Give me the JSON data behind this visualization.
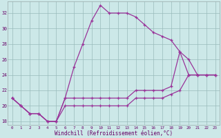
{
  "xlabel": "Windchill (Refroidissement éolien,°C)",
  "bg_color": "#cce8e8",
  "line_color": "#993399",
  "grid_color": "#99bbbb",
  "xlim_min": -0.5,
  "xlim_max": 23.5,
  "ylim_min": 17.5,
  "ylim_max": 33.5,
  "xticks": [
    0,
    1,
    2,
    3,
    4,
    5,
    6,
    7,
    8,
    9,
    10,
    11,
    12,
    13,
    14,
    15,
    16,
    17,
    18,
    19,
    20,
    21,
    22,
    23
  ],
  "yticks": [
    18,
    20,
    22,
    24,
    26,
    28,
    30,
    32
  ],
  "line1_x": [
    0,
    1,
    2,
    3,
    4,
    5,
    6,
    7,
    8,
    9,
    10,
    11,
    12,
    13,
    14,
    15,
    16,
    17,
    18,
    19,
    20,
    21,
    22,
    23
  ],
  "line1_y": [
    21,
    20,
    19,
    19,
    18,
    18,
    21,
    25,
    28,
    31,
    33,
    32,
    32,
    32,
    31.5,
    30.5,
    29.5,
    29,
    28.5,
    27,
    24,
    24,
    24,
    24
  ],
  "line2_x": [
    0,
    1,
    2,
    3,
    4,
    5,
    6,
    7,
    8,
    9,
    10,
    11,
    12,
    13,
    14,
    15,
    16,
    17,
    18,
    19,
    20,
    21,
    22,
    23
  ],
  "line2_y": [
    21,
    20,
    19,
    19,
    18,
    18,
    21,
    21,
    21,
    21,
    21,
    21,
    21,
    21,
    22,
    22,
    22,
    22,
    22.5,
    27,
    26,
    24,
    24,
    24
  ],
  "line3_x": [
    0,
    1,
    2,
    3,
    4,
    5,
    6,
    7,
    8,
    9,
    10,
    11,
    12,
    13,
    14,
    15,
    16,
    17,
    18,
    19,
    20,
    21,
    22,
    23
  ],
  "line3_y": [
    21,
    20,
    19,
    19,
    18,
    18,
    20,
    20,
    20,
    20,
    20,
    20,
    20,
    20,
    21,
    21,
    21,
    21,
    21.5,
    22,
    24,
    24,
    24,
    24
  ]
}
